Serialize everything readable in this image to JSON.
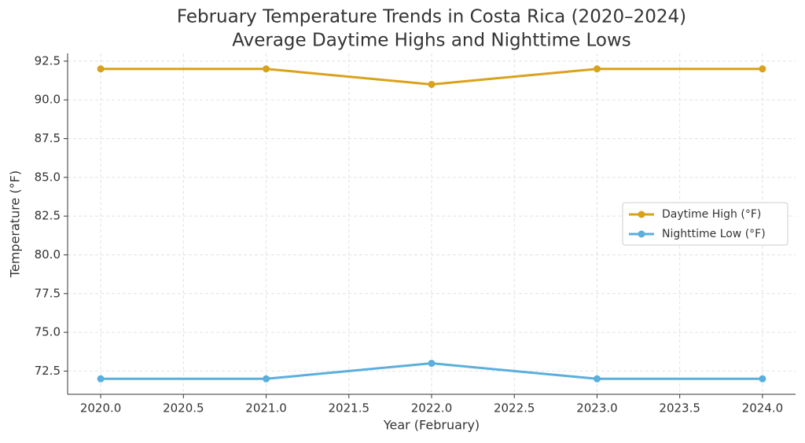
{
  "chart_data": {
    "type": "line",
    "title": "February Temperature Trends in Costa Rica (2020–2024)",
    "subtitle": "Average Daytime Highs and Nighttime Lows",
    "x_label": "Year (February)",
    "y_label": "Temperature (°F)",
    "x": [
      2020,
      2021,
      2022,
      2023,
      2024
    ],
    "series": [
      {
        "name": "Daytime High (°F)",
        "color": "#daa21b",
        "values": [
          92,
          92,
          91,
          92,
          92
        ]
      },
      {
        "name": "Nighttime Low (°F)",
        "color": "#5aafdc",
        "values": [
          72,
          72,
          73,
          72,
          72
        ]
      }
    ],
    "xlim": [
      2019.8,
      2024.2
    ],
    "xticks": [
      {
        "value": 2020,
        "label": "2020.0"
      },
      2020.5,
      {
        "value": 2021,
        "label": "2021.0"
      },
      2021.5,
      {
        "value": 2022,
        "label": "2022.0"
      },
      2022.5,
      {
        "value": 2023,
        "label": "2023.0"
      },
      2023.5,
      {
        "value": 2024,
        "label": "2024.0"
      }
    ],
    "ylim": [
      71,
      93
    ],
    "yticks": [
      72.5,
      {
        "value": 75,
        "label": "75.0"
      },
      77.5,
      {
        "value": 80,
        "label": "80.0"
      },
      82.5,
      {
        "value": 85,
        "label": "85.0"
      },
      87.5,
      {
        "value": 90,
        "label": "90.0"
      },
      92.5
    ],
    "grid": true,
    "legend": "center right"
  }
}
